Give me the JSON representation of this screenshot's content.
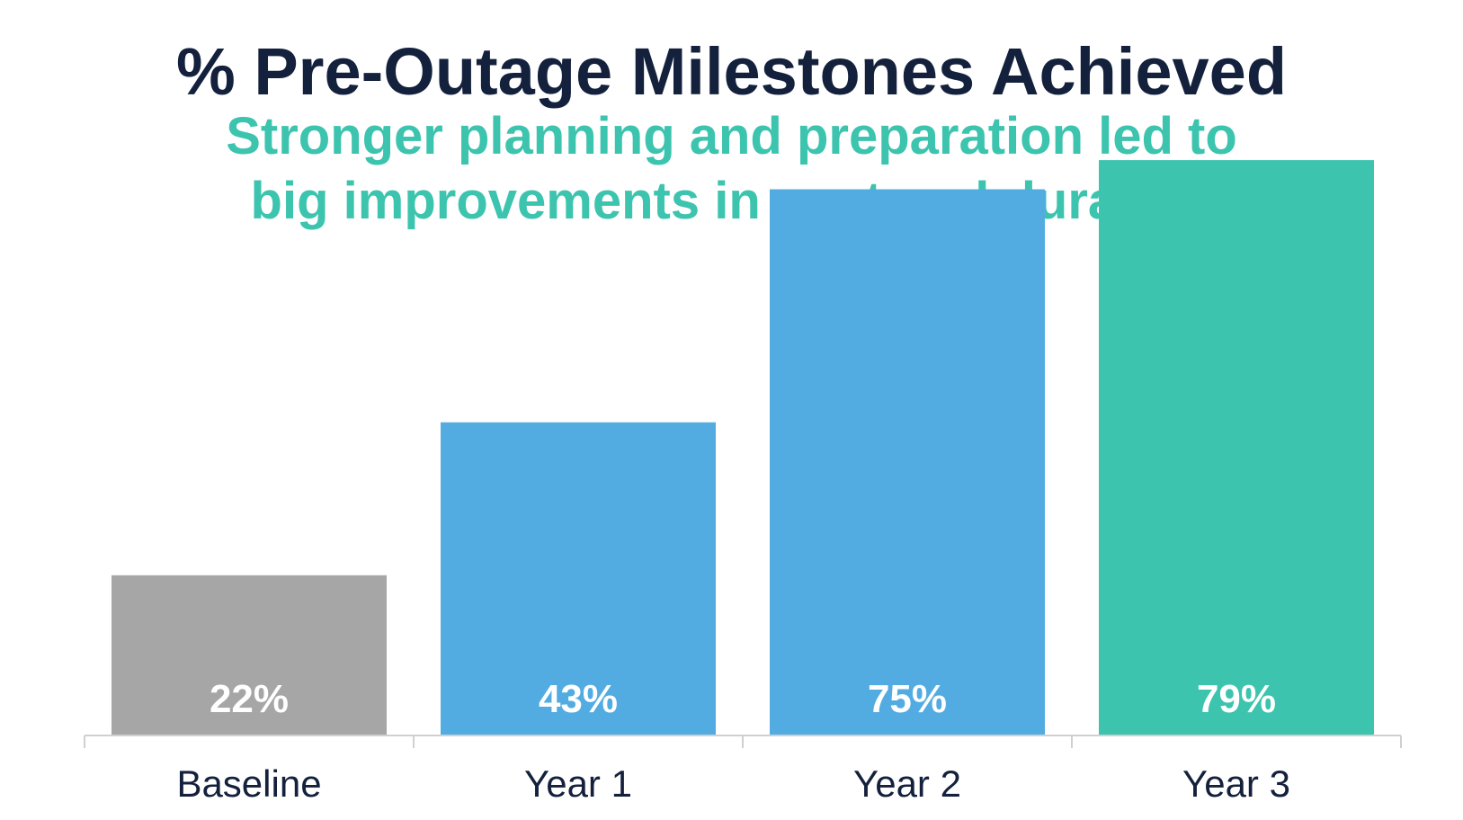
{
  "header": {
    "title": "% Pre-Outage Milestones Achieved",
    "subtitle_line1": "Stronger planning and preparation led to",
    "subtitle_line2": "big improvements in cost and duration"
  },
  "chart_data": {
    "type": "bar",
    "title": "% Pre-Outage Milestones Achieved",
    "subtitle": "Stronger planning and preparation led to big improvements in cost and duration",
    "categories": [
      "Baseline",
      "Year 1",
      "Year 2",
      "Year 3"
    ],
    "values": [
      22,
      43,
      75,
      79
    ],
    "data_labels": [
      "22%",
      "43%",
      "75%",
      "79%"
    ],
    "colors": [
      "#a6a6a6",
      "#52ace2",
      "#52ace2",
      "#3cc4ae"
    ],
    "xlabel": "",
    "ylabel": "",
    "ylim": [
      0,
      100
    ],
    "grid": false,
    "legend": "none"
  }
}
